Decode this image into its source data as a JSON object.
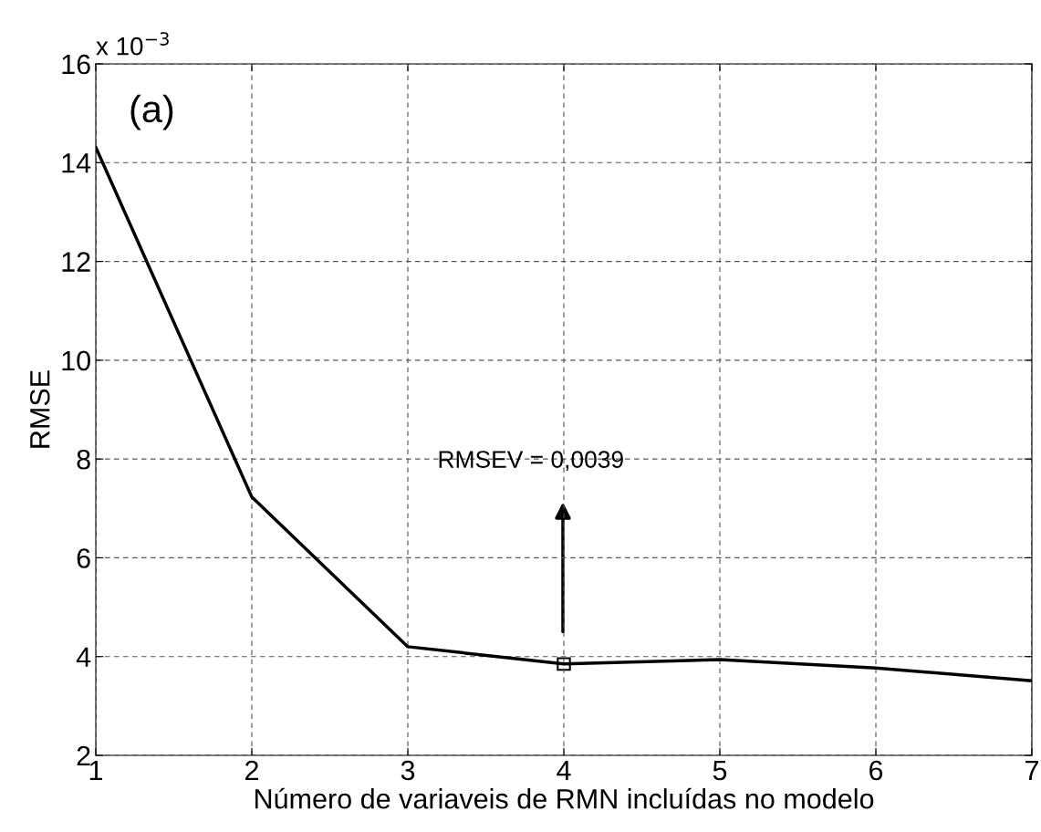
{
  "chart_data": {
    "type": "line",
    "xlabel": "Número de variaveis de RMN incluídas no modelo",
    "ylabel": "RMSE",
    "x": [
      1,
      2,
      3,
      4,
      5,
      6,
      7
    ],
    "series": [
      {
        "color": "#000000",
        "values": [
          14.31,
          7.23,
          4.2,
          3.85,
          3.94,
          3.77,
          3.51
        ]
      }
    ],
    "xlim": [
      1,
      7
    ],
    "xticks": [
      1,
      2,
      3,
      4,
      5,
      6,
      7
    ],
    "ylim": [
      2,
      16
    ],
    "yticks": [
      2,
      4,
      6,
      8,
      10,
      12,
      14,
      16
    ],
    "grid": true,
    "marker": "none",
    "line_style": "solid",
    "annotations": [
      "x 10$^{−3}$",
      "(a)",
      "RMSEV = 0,0039"
    ]
  }
}
